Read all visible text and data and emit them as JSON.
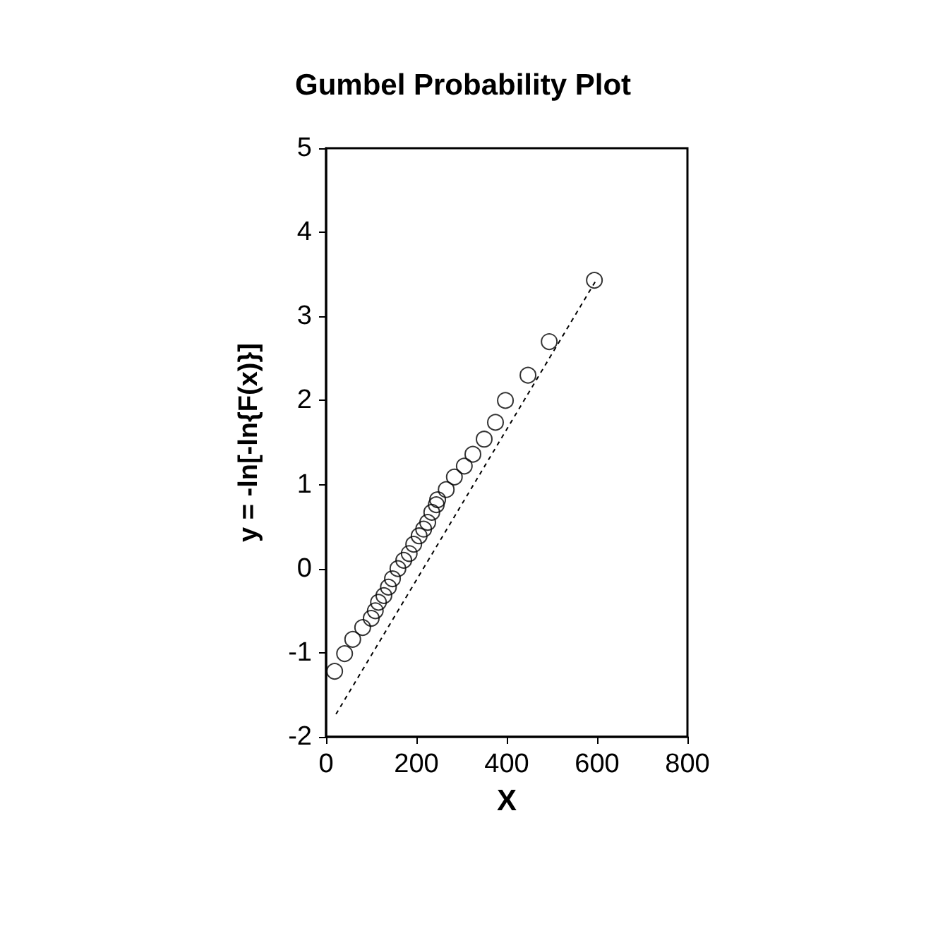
{
  "chart_data": {
    "type": "scatter",
    "title": "Gumbel Probability Plot",
    "xlabel": "X",
    "ylabel": "y = -ln[-ln{F(x)}]",
    "xlim": [
      0,
      800
    ],
    "xticks": [
      0,
      200,
      400,
      600,
      800
    ],
    "ylim": [
      -2,
      5
    ],
    "yticks": [
      -2,
      -1,
      0,
      1,
      2,
      3,
      4,
      5
    ],
    "grid": false,
    "series": [
      {
        "color": "#000000",
        "marker": "circle",
        "x": [
          19,
          41,
          59,
          81,
          100,
          109,
          116,
          128,
          138,
          147,
          159,
          172,
          184,
          194,
          206,
          216,
          225,
          234,
          244,
          247,
          266,
          284,
          306,
          325,
          350,
          375,
          397,
          447,
          494,
          594
        ],
        "values": [
          -1.22,
          -1.01,
          -0.84,
          -0.7,
          -0.59,
          -0.5,
          -0.4,
          -0.32,
          -0.22,
          -0.12,
          0,
          0.1,
          0.18,
          0.29,
          0.39,
          0.47,
          0.55,
          0.67,
          0.76,
          0.82,
          0.94,
          1.09,
          1.22,
          1.36,
          1.54,
          1.74,
          2,
          2.3,
          2.7,
          3.43
        ]
      },
      {
        "type": "line",
        "color": "#000000",
        "line_style": "dashed",
        "marker": "none",
        "x": [
          22,
          600
        ],
        "values": [
          -1.73,
          3.45
        ]
      }
    ]
  }
}
